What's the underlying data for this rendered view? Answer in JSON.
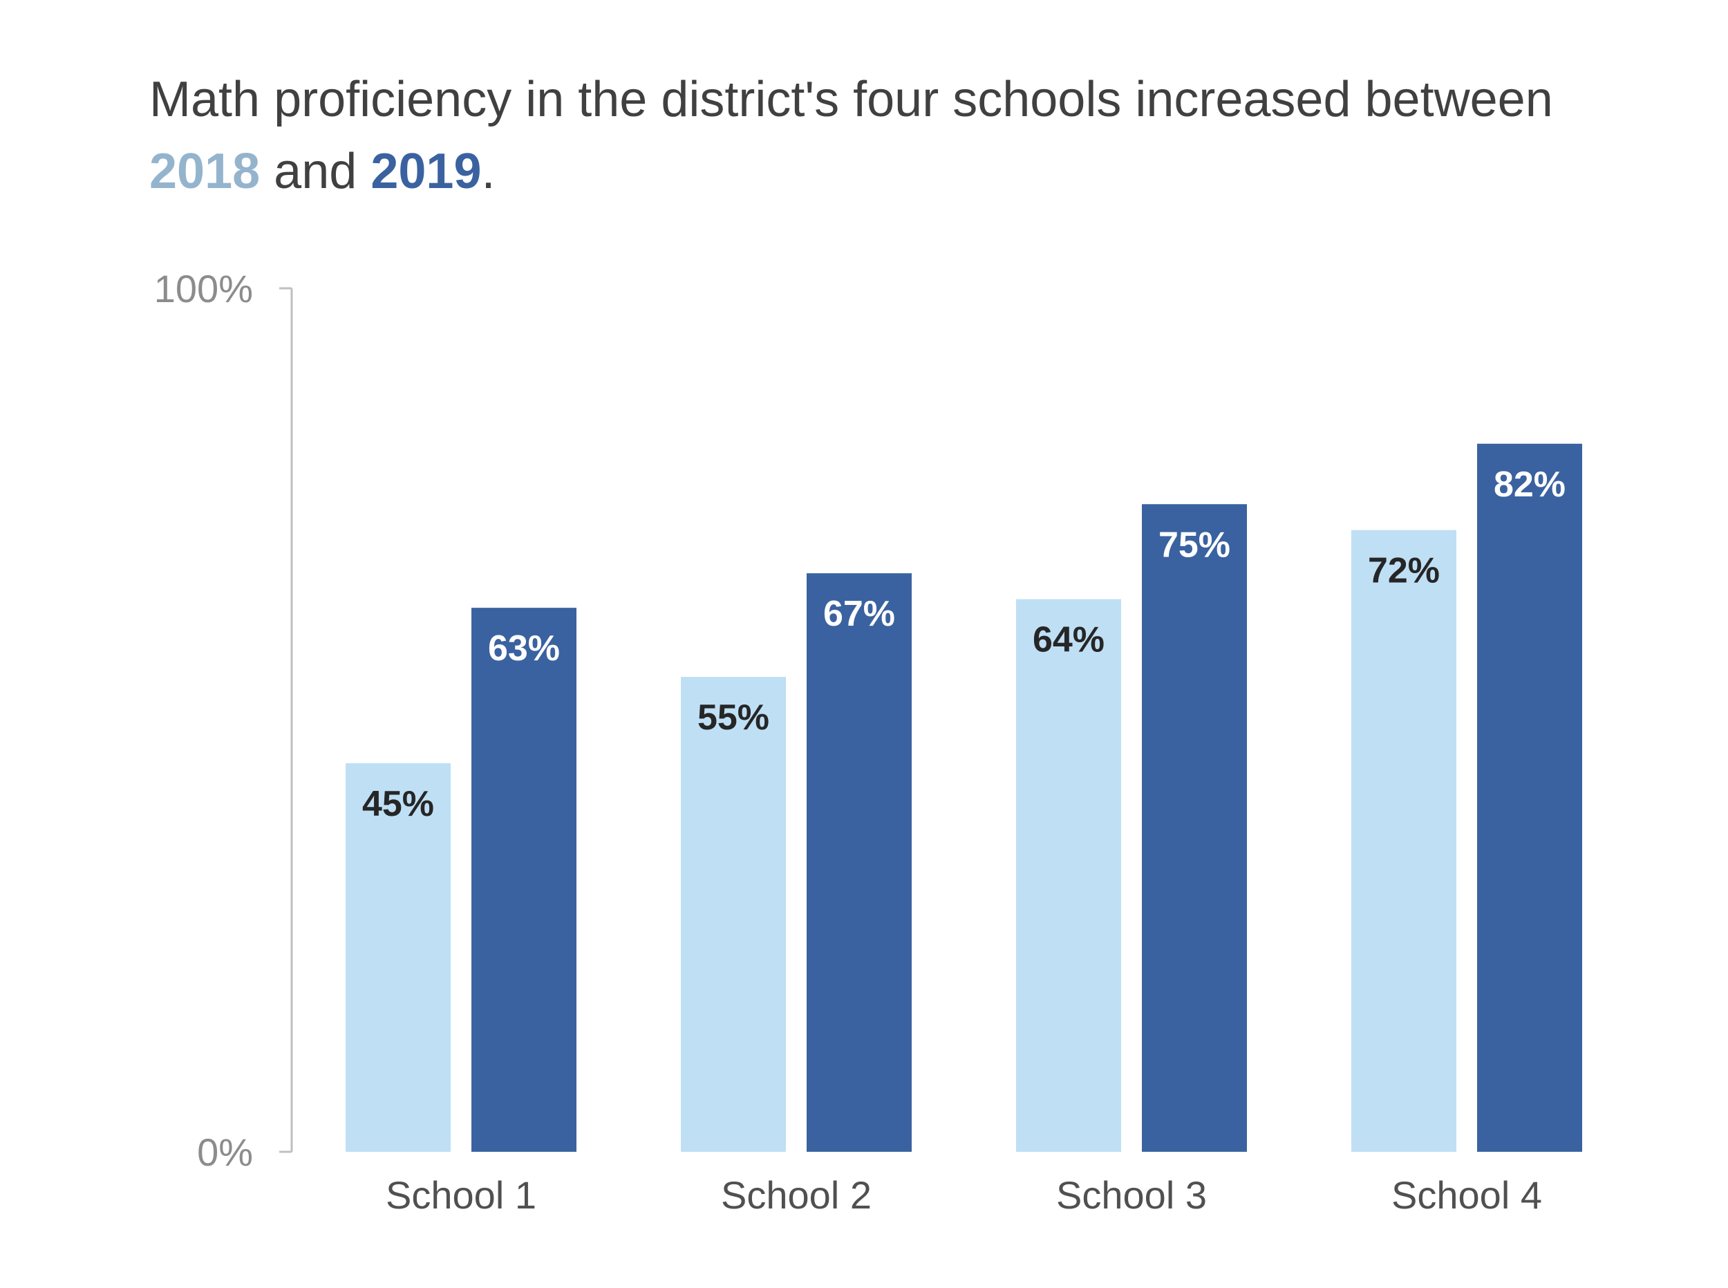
{
  "title": {
    "part1": "Math proficiency in the district's four schools increased between ",
    "highlight1": "2018",
    "part2": " and ",
    "highlight2": "2019",
    "part3": "."
  },
  "colors": {
    "series_2018": "#bfdff5",
    "series_2019": "#3a62a0",
    "title_2018": "#94b4cd",
    "title_2019": "#3a62a0",
    "axis": "#bfbfbf",
    "tick_text": "#8c8c8c",
    "category_text": "#505050",
    "label_dark": "#262626",
    "label_light": "#ffffff"
  },
  "chart_data": {
    "type": "bar",
    "categories": [
      "School 1",
      "School 2",
      "School 3",
      "School 4"
    ],
    "series": [
      {
        "name": "2018",
        "values": [
          45,
          55,
          64,
          72
        ]
      },
      {
        "name": "2019",
        "values": [
          63,
          67,
          75,
          82
        ]
      }
    ],
    "data_labels": [
      [
        "45%",
        "55%",
        "64%",
        "72%"
      ],
      [
        "63%",
        "67%",
        "75%",
        "82%"
      ]
    ],
    "ylim": [
      0,
      100
    ],
    "y_ticks": [
      {
        "value": 0,
        "label": "0%"
      },
      {
        "value": 100,
        "label": "100%"
      }
    ],
    "xlabel": "",
    "ylabel": "",
    "grid": false,
    "legend": "title"
  }
}
